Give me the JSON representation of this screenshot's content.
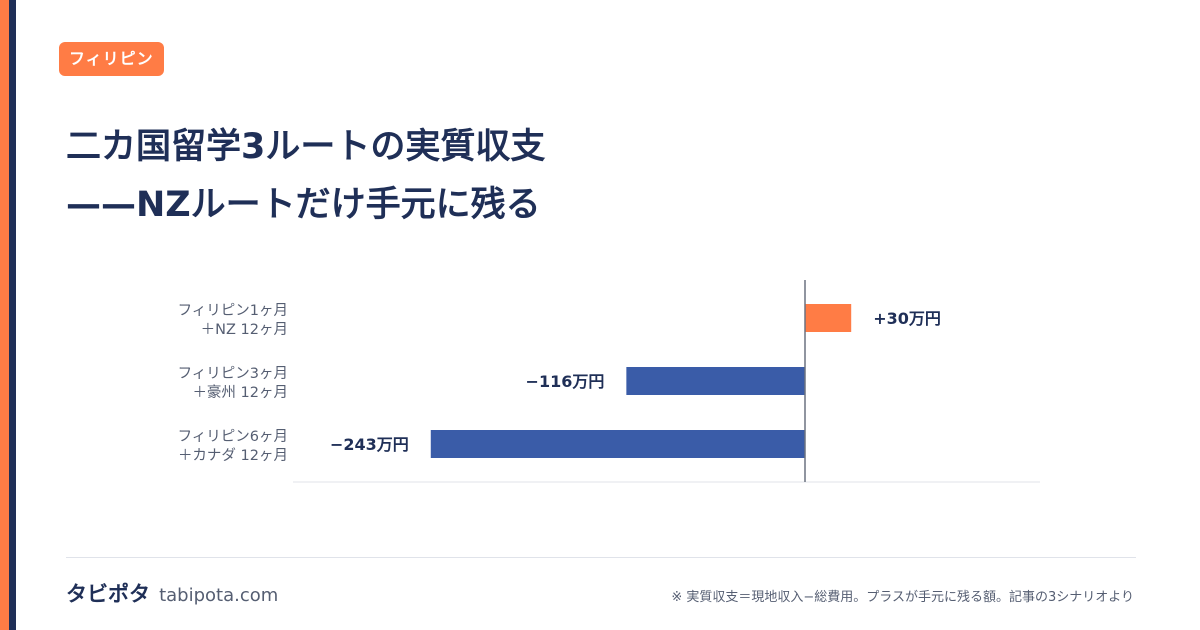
{
  "tag": "フィリピン",
  "title": {
    "line1": "二カ国留学3ルートの実質収支",
    "line2": "——NZルートだけ手元に残る"
  },
  "chart_data": {
    "type": "bar",
    "orientation": "horizontal",
    "unit": "万円",
    "categories": [
      [
        "フィリピン1ヶ月",
        "＋NZ 12ヶ月"
      ],
      [
        "フィリピン3ヶ月",
        "＋豪州 12ヶ月"
      ],
      [
        "フィリピン6ヶ月",
        "＋カナダ 12ヶ月"
      ]
    ],
    "values": [
      30,
      -116,
      -243
    ],
    "value_labels": [
      "+30万円",
      "−116万円",
      "−243万円"
    ],
    "colors": {
      "positive": "#ff7c45",
      "negative": "#3a5ca8"
    },
    "xlim": [
      -280,
      130
    ],
    "grid": false,
    "legend": "none"
  },
  "footer": {
    "brand": "タビポタ",
    "url": "tabipota.com",
    "note": "※ 実質収支＝現地収入−総費用。プラスが手元に残る額。記事の3シナリオより"
  }
}
